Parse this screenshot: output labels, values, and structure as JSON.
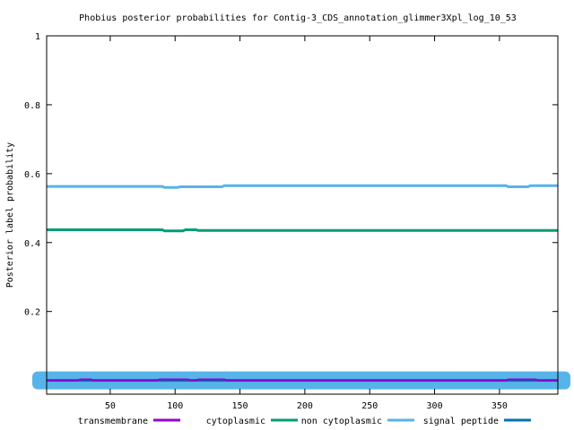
{
  "chart_data": {
    "type": "line",
    "title": "Phobius posterior probabilities for Contig-3_CDS_annotation_glimmer3Xpl_log_10_53",
    "xlabel": "",
    "ylabel": "Posterior label probability",
    "xlim": [
      1,
      395
    ],
    "ylim": [
      -0.04,
      1
    ],
    "x_ticks": [
      50,
      100,
      150,
      200,
      250,
      300,
      350
    ],
    "y_ticks": [
      0.2,
      0.4,
      0.6,
      0.8,
      1
    ],
    "y_tick_labels": [
      "0.2",
      "0.4",
      "0.6",
      "0.8",
      "1"
    ],
    "grid": false,
    "legend_position": "bottom",
    "series": [
      {
        "name": "transmembrane",
        "color": "#9400d3",
        "points": [
          [
            1,
            0
          ],
          [
            25,
            0
          ],
          [
            27,
            0.003
          ],
          [
            35,
            0.003
          ],
          [
            37,
            0
          ],
          [
            86,
            0
          ],
          [
            88,
            0.003
          ],
          [
            110,
            0.003
          ],
          [
            112,
            0
          ],
          [
            116,
            0
          ],
          [
            118,
            0.003
          ],
          [
            138,
            0.003
          ],
          [
            140,
            0
          ],
          [
            355,
            0
          ],
          [
            357,
            0.003
          ],
          [
            378,
            0.003
          ],
          [
            380,
            0
          ],
          [
            395,
            0
          ]
        ]
      },
      {
        "name": "cytoplasmic",
        "color": "#009e73",
        "points": [
          [
            1,
            0.437
          ],
          [
            90,
            0.437
          ],
          [
            92,
            0.434
          ],
          [
            106,
            0.434
          ],
          [
            108,
            0.437
          ],
          [
            116,
            0.437
          ],
          [
            118,
            0.435
          ],
          [
            395,
            0.435
          ]
        ]
      },
      {
        "name": "non cytoplasmic",
        "color": "#56b4e9",
        "points": [
          [
            1,
            0.563
          ],
          [
            90,
            0.563
          ],
          [
            92,
            0.56
          ],
          [
            102,
            0.56
          ],
          [
            104,
            0.562
          ],
          [
            136,
            0.562
          ],
          [
            138,
            0.565
          ],
          [
            355,
            0.565
          ],
          [
            357,
            0.562
          ],
          [
            372,
            0.562
          ],
          [
            374,
            0.565
          ],
          [
            395,
            0.565
          ]
        ]
      },
      {
        "name": "signal peptide",
        "color": "#0072b2",
        "points": [
          [
            1,
            0
          ],
          [
            395,
            0
          ]
        ]
      }
    ]
  }
}
